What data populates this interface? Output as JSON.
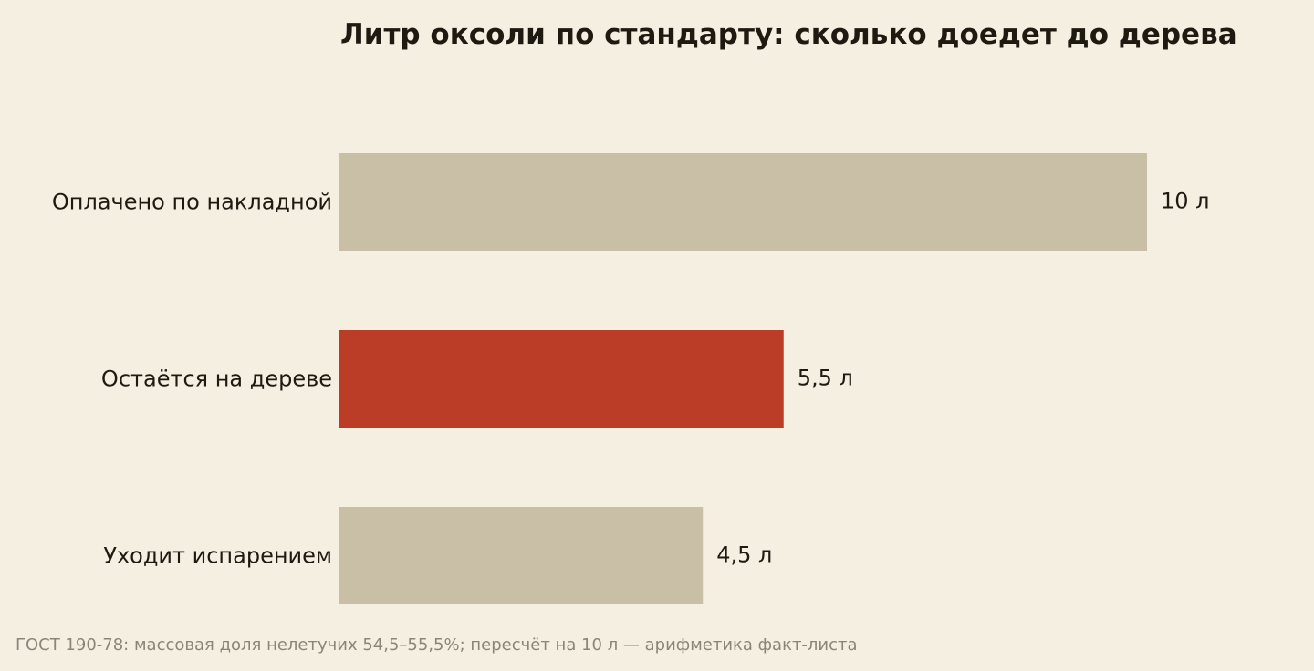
{
  "chart_data": {
    "type": "bar",
    "orientation": "horizontal",
    "title": "Литр оксоли по стандарту: сколько доедет до дерева",
    "categories": [
      "Оплачено по накладной",
      "Остаётся на дереве",
      "Уходит испарением"
    ],
    "values": [
      10,
      5.5,
      4.5
    ],
    "value_labels": [
      "10 л",
      "5,5 л",
      "4,5 л"
    ],
    "unit": "л",
    "xlim": [
      0,
      10
    ],
    "grid": false,
    "legend": "none",
    "colors": {
      "default": "#c9bfa6",
      "highlight": "#bb3d27",
      "background": "#f5efe2"
    },
    "highlight_index": 1,
    "note": "ГОСТ 190-78: массовая доля нелетучих 54,5–55,5%; пересчёт на 10 л — арифметика факт-листа"
  }
}
